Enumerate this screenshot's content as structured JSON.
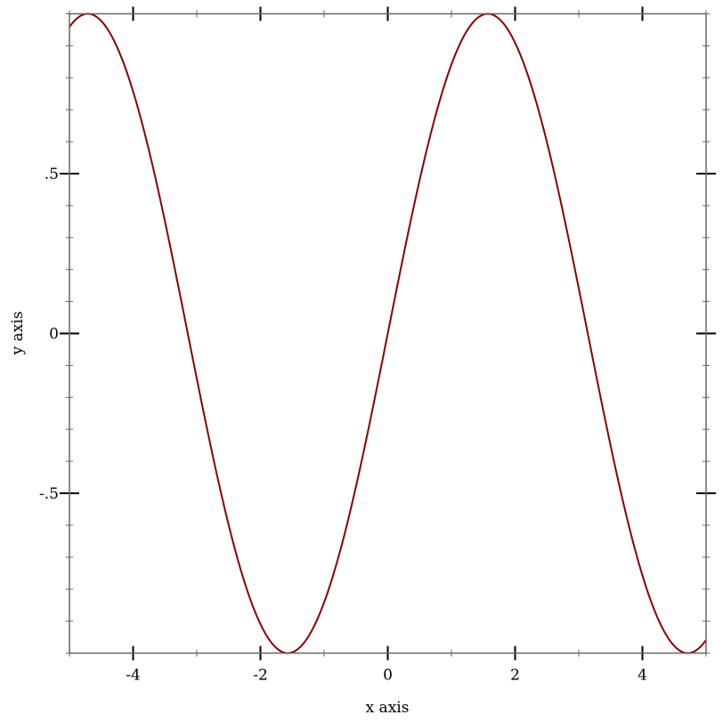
{
  "chart_data": {
    "type": "line",
    "title": "",
    "xlabel": "x axis",
    "ylabel": "y axis",
    "xlim": [
      -5,
      5
    ],
    "ylim": [
      -1,
      1
    ],
    "grid": false,
    "function": "sin(x)",
    "series": [
      {
        "color": "#8b0000",
        "samples": 400
      }
    ],
    "x_ticks": {
      "major": [
        -4,
        -2,
        0,
        2,
        4
      ],
      "labels": [
        "-4",
        "-2",
        "0",
        "2",
        "4"
      ],
      "minor_step": 1
    },
    "y_ticks": {
      "major": [
        -0.5,
        0,
        0.5
      ],
      "labels": [
        "-.5",
        "0",
        ".5"
      ],
      "minor_step": 0.1
    },
    "axis_color": "#666666"
  }
}
